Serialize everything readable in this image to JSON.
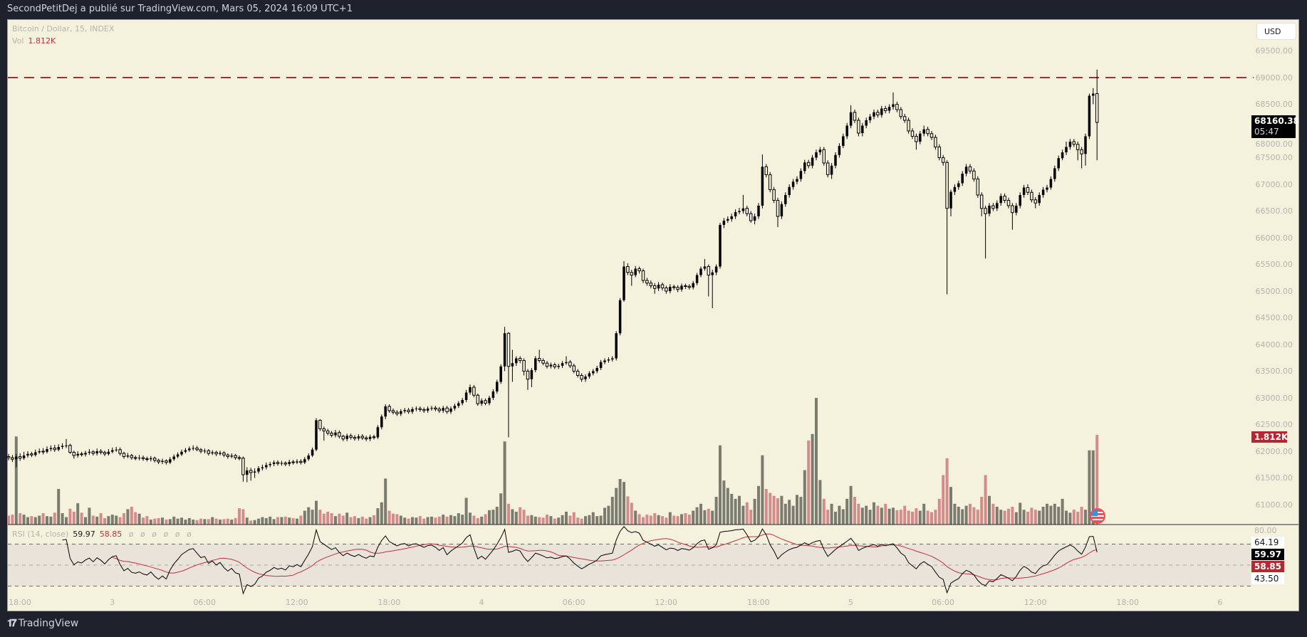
{
  "header": {
    "published_text": "SecondPetitDej a publié sur TradingView.com, Mars 05, 2024 16:09 UTC+1"
  },
  "legend": {
    "symbol": "Bitcoin / Dollar, 15, INDEX",
    "vol_label": "Vol",
    "vol_value": "1.812K"
  },
  "currency_button": "USD",
  "footer": {
    "brand": "TradingView"
  },
  "colors": {
    "background": "#1e222d",
    "chart_bg": "#f4f1dc",
    "up_volume": "#7b7b6f",
    "down_volume": "#d48c8a",
    "level_line": "#b22833",
    "rsi_line": "#000000",
    "rsi_ma": "#c0313b",
    "rsi_band": "#e9e3d9"
  },
  "chart_data": [
    {
      "type": "candlestick",
      "timeframe": "15",
      "price_axis_labels": [
        "69500.00",
        "69000.00",
        "68500.00",
        "68000.00",
        "67500.00",
        "67000.00",
        "66500.00",
        "66000.00",
        "65500.00",
        "65000.00",
        "64500.00",
        "64000.00",
        "63500.00",
        "63000.00",
        "62500.00",
        "62000.00",
        "61500.00",
        "61000.00"
      ],
      "ylim": [
        60500,
        69950
      ],
      "time_axis_labels": [
        "18:00",
        "3",
        "06:00",
        "12:00",
        "18:00",
        "4",
        "06:00",
        "12:00",
        "18:00",
        "5",
        "06:00",
        "12:00",
        "18:00",
        "6"
      ],
      "horizontal_level": 69000,
      "last_price": "68160.38",
      "countdown": "05:47",
      "first_open": 61900,
      "close": [
        61880,
        61850,
        61900,
        61870,
        61920,
        61950,
        61930,
        61980,
        62000,
        61990,
        62040,
        62060,
        62030,
        62080,
        62100,
        62110,
        61980,
        61920,
        61950,
        61940,
        61970,
        61990,
        61960,
        62000,
        61980,
        61950,
        61990,
        62020,
        62030,
        61960,
        61900,
        61920,
        61880,
        61870,
        61880,
        61860,
        61850,
        61870,
        61830,
        61800,
        61820,
        61790,
        61850,
        61900,
        61940,
        61990,
        62020,
        62050,
        62060,
        62030,
        62000,
        62010,
        61960,
        61980,
        61950,
        61970,
        61930,
        61900,
        61920,
        61880,
        61870,
        61560,
        61640,
        61600,
        61620,
        61680,
        61700,
        61740,
        61760,
        61790,
        61770,
        61780,
        61760,
        61800,
        61790,
        61810,
        61790,
        61850,
        61920,
        62030,
        62580,
        62420,
        62380,
        62340,
        62300,
        62350,
        62280,
        62230,
        62290,
        62260,
        62240,
        62280,
        62250,
        62230,
        62270,
        62260,
        62450,
        62650,
        62840,
        62760,
        62730,
        62700,
        62750,
        62770,
        62740,
        62790,
        62800,
        62780,
        62760,
        62800,
        62810,
        62790,
        62760,
        62810,
        62740,
        62800,
        62850,
        62900,
        62960,
        63100,
        63200,
        63050,
        62890,
        62950,
        62900,
        63000,
        63120,
        63300,
        63590,
        64210,
        63590,
        63650,
        63740,
        63700,
        63500,
        63350,
        63520,
        63740,
        63700,
        63650,
        63590,
        63620,
        63580,
        63600,
        63650,
        63670,
        63600,
        63500,
        63420,
        63350,
        63400,
        63460,
        63500,
        63560,
        63670,
        63700,
        63720,
        63740,
        64210,
        64830,
        65460,
        65350,
        65300,
        65420,
        65380,
        65200,
        65150,
        65100,
        65050,
        65120,
        65060,
        65000,
        65080,
        65070,
        65030,
        65100,
        65090,
        65070,
        65150,
        65300,
        65420,
        65460,
        65300,
        65350,
        65460,
        66240,
        66320,
        66350,
        66400,
        66480,
        66500,
        66550,
        66450,
        66320,
        66400,
        66600,
        67330,
        67180,
        66900,
        66700,
        66400,
        66630,
        66800,
        66950,
        67050,
        67100,
        67250,
        67410,
        67350,
        67500,
        67600,
        67650,
        67400,
        67180,
        67350,
        67550,
        67720,
        67900,
        68100,
        68350,
        68200,
        67960,
        68100,
        68200,
        68270,
        68350,
        68300,
        68420,
        68380,
        68450,
        68500,
        68400,
        68270,
        68200,
        68000,
        67900,
        67800,
        67950,
        68030,
        67950,
        67880,
        67700,
        67500,
        67410,
        66550,
        66860,
        66950,
        67020,
        67200,
        67330,
        67250,
        67100,
        66800,
        66550,
        66450,
        66600,
        66550,
        66650,
        66780,
        66700,
        66600,
        66470,
        66600,
        66800,
        66940,
        66850,
        66710,
        66650,
        66800,
        66900,
        66940,
        67100,
        67300,
        67490,
        67600,
        67700,
        67800,
        67750,
        67650,
        67570,
        67900,
        68660,
        68700,
        68160
      ],
      "high": [
        61950,
        61930,
        61950,
        61960,
        61990,
        62000,
        61990,
        62030,
        62050,
        62060,
        62090,
        62110,
        62120,
        62130,
        62150,
        62230,
        62140,
        62010,
        62000,
        61990,
        62010,
        62040,
        62020,
        62050,
        62040,
        62010,
        62040,
        62070,
        62080,
        62070,
        61990,
        61970,
        61950,
        61920,
        61930,
        61920,
        61900,
        61910,
        61900,
        61860,
        61860,
        61850,
        61890,
        61940,
        61980,
        62030,
        62060,
        62090,
        62110,
        62100,
        62060,
        62050,
        62040,
        62020,
        62010,
        62010,
        62000,
        61960,
        61960,
        61950,
        61920,
        61900,
        61700,
        61690,
        61680,
        61720,
        61750,
        61790,
        61800,
        61830,
        61830,
        61820,
        61810,
        61840,
        61840,
        61850,
        61850,
        61890,
        61960,
        62070,
        62620,
        62600,
        62460,
        62420,
        62380,
        62400,
        62390,
        62310,
        62330,
        62330,
        62300,
        62320,
        62320,
        62290,
        62310,
        62310,
        62490,
        62690,
        62880,
        62880,
        62800,
        62770,
        62790,
        62810,
        62810,
        62830,
        62840,
        62840,
        62820,
        62840,
        62850,
        62850,
        62830,
        62850,
        62850,
        62840,
        62890,
        62940,
        63000,
        63150,
        63250,
        63240,
        63080,
        62990,
        62990,
        63040,
        63160,
        63340,
        63630,
        64330,
        64230,
        63900,
        63780,
        63780,
        63740,
        63540,
        63560,
        63780,
        63900,
        63740,
        63690,
        63660,
        63660,
        63640,
        63690,
        63780,
        63710,
        63640,
        63540,
        63460,
        63440,
        63500,
        63540,
        63600,
        63710,
        63740,
        63760,
        63780,
        64250,
        64870,
        65560,
        65520,
        65400,
        65470,
        65460,
        65420,
        65250,
        65200,
        65150,
        65170,
        65160,
        65100,
        65130,
        65120,
        65110,
        65140,
        65140,
        65130,
        65190,
        65340,
        65460,
        65600,
        65500,
        65400,
        65500,
        66280,
        66370,
        66400,
        66450,
        66530,
        66560,
        66800,
        66600,
        66500,
        66450,
        66650,
        67560,
        67380,
        67230,
        66950,
        66750,
        66680,
        66850,
        67000,
        67100,
        67150,
        67300,
        67460,
        67460,
        67550,
        67650,
        67700,
        67700,
        67450,
        67400,
        67600,
        67770,
        67950,
        68150,
        68480,
        68400,
        68250,
        68150,
        68250,
        68320,
        68400,
        68400,
        68470,
        68470,
        68500,
        68720,
        68550,
        68450,
        68320,
        68250,
        68050,
        67950,
        68000,
        68100,
        68080,
        68000,
        67930,
        67750,
        67550,
        67450,
        66900,
        67000,
        67070,
        67250,
        67380,
        67380,
        67300,
        67150,
        66850,
        66600,
        66650,
        66650,
        66700,
        66830,
        66830,
        66750,
        66650,
        66650,
        66850,
        66990,
        67000,
        66900,
        66760,
        66850,
        66950,
        66990,
        67150,
        67350,
        67540,
        67650,
        67800,
        67850,
        67850,
        67800,
        67700,
        67950,
        68700,
        68800,
        69150
      ],
      "low": [
        61830,
        61800,
        61700,
        61820,
        61840,
        61880,
        61890,
        61900,
        61950,
        61940,
        61960,
        62000,
        61990,
        62000,
        62040,
        62060,
        61950,
        61860,
        61880,
        61900,
        61900,
        61930,
        61920,
        61920,
        61940,
        61910,
        61920,
        61960,
        61990,
        61920,
        61860,
        61870,
        61840,
        61830,
        61830,
        61820,
        61810,
        61810,
        61790,
        61760,
        61760,
        61750,
        61760,
        61820,
        61870,
        61910,
        61960,
        61990,
        62010,
        62000,
        61960,
        61960,
        61920,
        61930,
        61910,
        61920,
        61890,
        61860,
        61870,
        61840,
        61830,
        61430,
        61420,
        61450,
        61500,
        61580,
        61640,
        61660,
        61700,
        61720,
        61730,
        61730,
        61720,
        61720,
        61750,
        61760,
        61750,
        61760,
        61820,
        61890,
        62000,
        62380,
        62200,
        62300,
        62260,
        62260,
        62240,
        62190,
        62190,
        62220,
        62200,
        62200,
        62210,
        62190,
        62190,
        62220,
        62230,
        62410,
        62600,
        62720,
        62690,
        62660,
        62660,
        62710,
        62700,
        62700,
        62750,
        62740,
        62720,
        62720,
        62760,
        62750,
        62720,
        62720,
        62700,
        62700,
        62760,
        62810,
        62860,
        62920,
        63060,
        63010,
        62850,
        62850,
        62860,
        62860,
        62960,
        63080,
        63260,
        63500,
        62260,
        63300,
        63600,
        63650,
        63420,
        63150,
        63200,
        63480,
        63660,
        63610,
        63550,
        63550,
        63540,
        63540,
        63560,
        63620,
        63560,
        63460,
        63380,
        63300,
        63300,
        63360,
        63420,
        63460,
        63520,
        63630,
        63660,
        63680,
        63700,
        64170,
        64800,
        65300,
        65100,
        65260,
        65330,
        65150,
        65100,
        65050,
        64950,
        65000,
        65010,
        64950,
        64960,
        65020,
        64980,
        64990,
        65040,
        65030,
        65030,
        65110,
        65260,
        65380,
        64900,
        64680,
        65300,
        65420,
        66180,
        66280,
        66300,
        66350,
        66440,
        66450,
        66400,
        66280,
        66250,
        66350,
        66550,
        67130,
        66850,
        66650,
        66200,
        66350,
        66580,
        66750,
        66900,
        67000,
        67050,
        67200,
        67300,
        67300,
        67450,
        67550,
        67350,
        67130,
        67100,
        67300,
        67500,
        67680,
        67850,
        68050,
        68150,
        67900,
        67900,
        68050,
        68150,
        68220,
        68250,
        68250,
        68330,
        68330,
        68400,
        68350,
        68220,
        68150,
        67950,
        67850,
        67650,
        67750,
        67900,
        67900,
        67830,
        67650,
        67450,
        67350,
        64940,
        66400,
        66800,
        66900,
        66970,
        67150,
        67200,
        67050,
        66750,
        66400,
        65610,
        66400,
        66500,
        66500,
        66600,
        66650,
        66550,
        66150,
        66420,
        66550,
        66750,
        66800,
        66660,
        66550,
        66600,
        66750,
        66850,
        66900,
        67050,
        67250,
        67450,
        67550,
        67650,
        67700,
        67450,
        67300,
        67350,
        67850,
        68500,
        67450
      ],
      "volume": [
        180,
        200,
        1780,
        230,
        200,
        150,
        170,
        150,
        180,
        230,
        170,
        160,
        240,
        720,
        230,
        150,
        320,
        260,
        430,
        240,
        150,
        340,
        180,
        160,
        230,
        130,
        170,
        200,
        180,
        150,
        230,
        310,
        360,
        250,
        220,
        140,
        170,
        100,
        120,
        130,
        140,
        100,
        110,
        160,
        120,
        140,
        100,
        130,
        100,
        90,
        120,
        110,
        110,
        150,
        120,
        100,
        110,
        120,
        100,
        130,
        330,
        310,
        140,
        80,
        90,
        120,
        150,
        130,
        160,
        110,
        150,
        150,
        160,
        140,
        130,
        120,
        180,
        280,
        350,
        300,
        480,
        300,
        220,
        260,
        230,
        170,
        220,
        180,
        240,
        150,
        170,
        130,
        160,
        120,
        150,
        190,
        330,
        450,
        930,
        280,
        220,
        210,
        180,
        140,
        120,
        150,
        140,
        170,
        120,
        150,
        160,
        140,
        160,
        200,
        160,
        190,
        170,
        230,
        200,
        540,
        240,
        180,
        130,
        160,
        210,
        290,
        300,
        360,
        630,
        1680,
        420,
        310,
        260,
        350,
        300,
        180,
        190,
        160,
        150,
        140,
        200,
        170,
        120,
        140,
        190,
        260,
        180,
        250,
        140,
        120,
        170,
        190,
        250,
        170,
        180,
        340,
        380,
        560,
        740,
        920,
        860,
        570,
        440,
        280,
        210,
        150,
        200,
        180,
        230,
        190,
        170,
        140,
        250,
        180,
        170,
        210,
        230,
        200,
        280,
        350,
        420,
        290,
        320,
        280,
        560,
        1600,
        890,
        740,
        620,
        520,
        580,
        380,
        450,
        300,
        520,
        780,
        1400,
        720,
        640,
        580,
        530,
        580,
        420,
        500,
        380,
        600,
        560,
        1100,
        1700,
        1830,
        2560,
        900,
        520,
        300,
        420,
        260,
        380,
        310,
        520,
        780,
        560,
        420,
        340,
        380,
        300,
        450,
        380,
        340,
        420,
        320,
        340,
        290,
        300,
        380,
        280,
        260,
        330,
        280,
        420,
        280,
        250,
        300,
        520,
        1000,
        1340,
        760,
        420,
        360,
        310,
        380,
        420,
        350,
        300,
        560,
        1000,
        580,
        420,
        360,
        300,
        280,
        320,
        360,
        250,
        440,
        300,
        260,
        340,
        300,
        280,
        360,
        420,
        380,
        420,
        360,
        520,
        280,
        240,
        300,
        260,
        360,
        300,
        1500,
        1500,
        1812
      ]
    },
    {
      "type": "line",
      "indicator": "RSI (14, close)",
      "rsi_value": "59.97",
      "rsi_ma_value": "58.85",
      "placeholders": [
        "ø",
        "ø",
        "ø",
        "ø",
        "ø",
        "ø"
      ],
      "axis_label": "80.00",
      "bands": [
        70,
        50,
        30
      ],
      "ylim": [
        20,
        90
      ],
      "tags": {
        "upper": "64.19",
        "rsi": "59.97",
        "ma": "58.85",
        "lower": "43.50"
      }
    }
  ]
}
